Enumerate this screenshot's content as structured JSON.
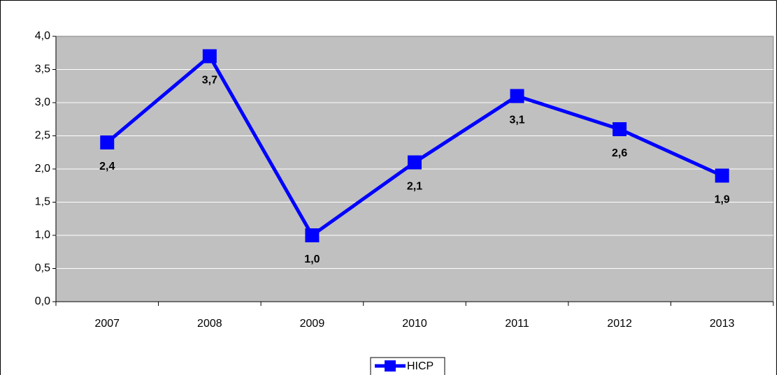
{
  "chart_data": {
    "type": "line",
    "categories": [
      "2007",
      "2008",
      "2009",
      "2010",
      "2011",
      "2012",
      "2013"
    ],
    "series": [
      {
        "name": "HICP",
        "color": "#0000ff",
        "values": [
          2.4,
          3.7,
          1.0,
          2.1,
          3.1,
          2.6,
          1.9
        ],
        "value_labels": [
          "2,4",
          "3,7",
          "1,0",
          "2,1",
          "3,1",
          "2,6",
          "1,9"
        ]
      }
    ],
    "ylim": [
      0,
      4
    ],
    "yticks": [
      {
        "value": 0,
        "label": "0,0"
      },
      {
        "value": 0.5,
        "label": "0,5"
      },
      {
        "value": 1,
        "label": "1,0"
      },
      {
        "value": 1.5,
        "label": "1,5"
      },
      {
        "value": 2,
        "label": "2,0"
      },
      {
        "value": 2.5,
        "label": "2,5"
      },
      {
        "value": 3,
        "label": "3,0"
      },
      {
        "value": 3.5,
        "label": "3,5"
      },
      {
        "value": 4,
        "label": "4,0"
      }
    ],
    "grid": true,
    "legend": "bottom",
    "background": "#c0c0c0"
  }
}
